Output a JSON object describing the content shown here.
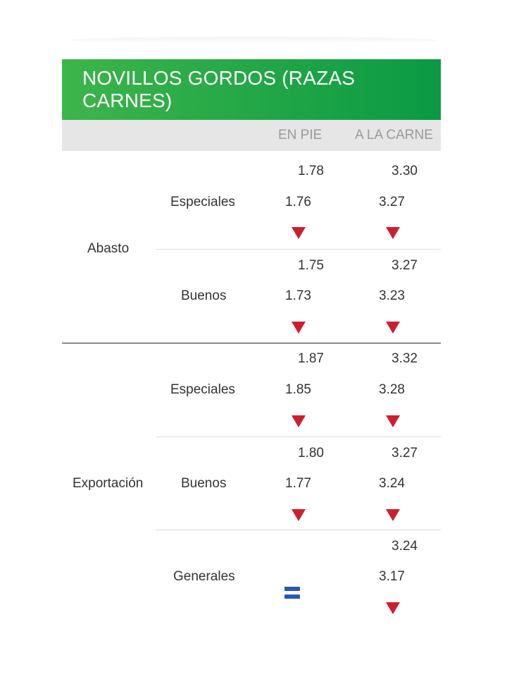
{
  "title": "NOVILLOS GORDOS (RAZAS CARNES)",
  "columns": {
    "en_pie": "EN PIE",
    "a_la_carne": "A LA CARNE"
  },
  "colors": {
    "header_start": "#3db54a",
    "header_end": "#0a9a44",
    "down": "#cc1f2e",
    "equal": "#2a56b8"
  },
  "groups": [
    {
      "label": "Abasto",
      "rows": [
        {
          "label": "Especiales",
          "pie_prev": "1.78",
          "pie": "1.76",
          "pie_trend": "down-triangle-icon",
          "carne_prev": "3.30",
          "carne": "3.27",
          "carne_trend": "down-triangle-icon"
        },
        {
          "label": "Buenos",
          "pie_prev": "1.75",
          "pie": "1.73",
          "pie_trend": "down-triangle-icon",
          "carne_prev": "3.27",
          "carne": "3.23",
          "carne_trend": "down-triangle-icon"
        }
      ]
    },
    {
      "label": "Exportación",
      "rows": [
        {
          "label": "Especiales",
          "pie_prev": "1.87",
          "pie": "1.85",
          "pie_trend": "down-triangle-icon",
          "carne_prev": "3.32",
          "carne": "3.28",
          "carne_trend": "down-triangle-icon"
        },
        {
          "label": "Buenos",
          "pie_prev": "1.80",
          "pie": "1.77",
          "pie_trend": "down-triangle-icon",
          "carne_prev": "3.27",
          "carne": "3.24",
          "carne_trend": "down-triangle-icon"
        },
        {
          "label": "Generales",
          "pie_trend": "equal-icon",
          "carne_prev": "3.24",
          "carne": "3.17",
          "carne_trend": "down-triangle-icon"
        }
      ]
    }
  ]
}
